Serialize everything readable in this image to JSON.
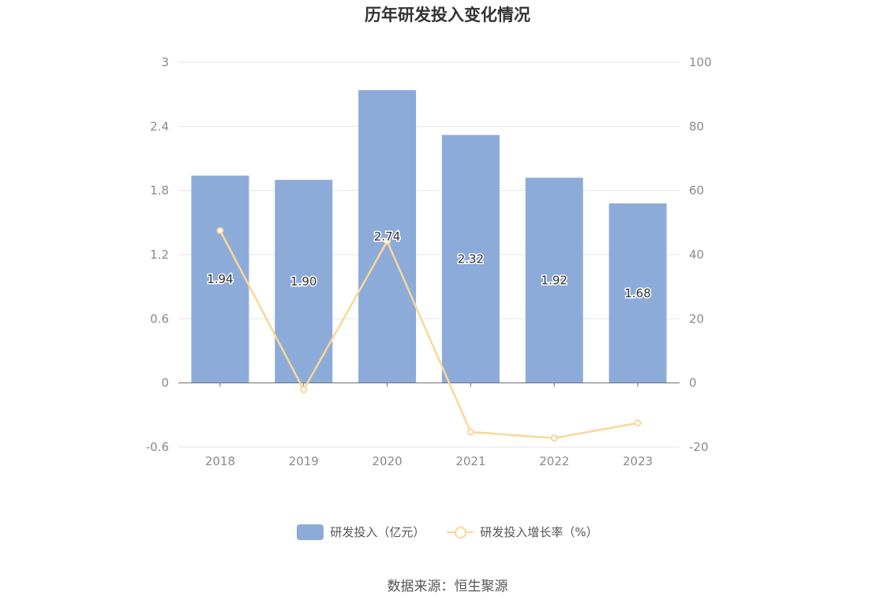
{
  "chart_data": {
    "type": "bar",
    "title": "历年研发投入变化情况",
    "categories": [
      "2018",
      "2019",
      "2020",
      "2021",
      "2022",
      "2023"
    ],
    "series": [
      {
        "name": "研发投入（亿元）",
        "type": "bar",
        "axis": "left",
        "values": [
          1.94,
          1.9,
          2.74,
          2.32,
          1.92,
          1.68
        ],
        "labels": [
          "1.94",
          "1.90",
          "2.74",
          "2.32",
          "1.92",
          "1.68"
        ],
        "color": "#8cabd9"
      },
      {
        "name": "研发投入增长率（%）",
        "type": "line",
        "axis": "right",
        "values": [
          47.5,
          -2.1,
          44.2,
          -15.3,
          -17.2,
          -12.5
        ],
        "color": "#fad797"
      }
    ],
    "y_left": {
      "min": -0.6,
      "max": 3,
      "ticks": [
        "3",
        "2.4",
        "1.8",
        "1.2",
        "0.6",
        "0",
        "-0.6"
      ]
    },
    "y_right": {
      "min": -20,
      "max": 100,
      "ticks": [
        "100",
        "80",
        "60",
        "40",
        "20",
        "0",
        "-20"
      ]
    },
    "grid": true,
    "legend_position": "bottom-center",
    "source": "数据来源：恒生聚源"
  }
}
